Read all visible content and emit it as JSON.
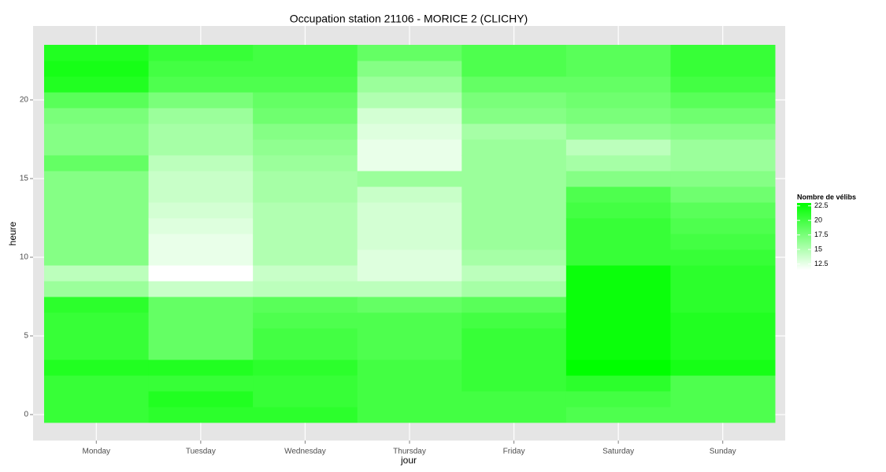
{
  "chart_data": {
    "type": "heatmap",
    "title": "Occupation station 21106 - MORICE 2 (CLICHY)",
    "x_label": "jour",
    "y_label": "heure",
    "categories": [
      "Monday",
      "Tuesday",
      "Wednesday",
      "Thursday",
      "Friday",
      "Saturday",
      "Sunday"
    ],
    "y": [
      0,
      1,
      2,
      3,
      4,
      5,
      6,
      7,
      8,
      9,
      10,
      11,
      12,
      13,
      14,
      15,
      16,
      17,
      18,
      19,
      20,
      21,
      22,
      23
    ],
    "values": [
      [
        20.5,
        20.5,
        20.5,
        21.5,
        20.5,
        20.5,
        20.5,
        21,
        16,
        14.5,
        17,
        17,
        17,
        17,
        17,
        17,
        18.5,
        17,
        17,
        17.5,
        19,
        21.5,
        22,
        21.5
      ],
      [
        21,
        21.5,
        20.5,
        21.5,
        18.5,
        18.5,
        18.5,
        18.5,
        14,
        11.5,
        12.5,
        12.5,
        13,
        13.5,
        14,
        14,
        14.5,
        15.5,
        15.5,
        16,
        17.5,
        19.5,
        20,
        20.5
      ],
      [
        21,
        20.5,
        20.5,
        21,
        20,
        20,
        19.5,
        19,
        14.5,
        14,
        15,
        15,
        15,
        15,
        15.5,
        15.5,
        16,
        16.5,
        17,
        18,
        18.5,
        19.5,
        20,
        20
      ],
      [
        20,
        20,
        20,
        20,
        19.5,
        19.5,
        19.5,
        18.5,
        14.5,
        13,
        13,
        13.5,
        13.5,
        13.5,
        14,
        16,
        12.5,
        12.5,
        13,
        13.5,
        15,
        16,
        17,
        18.5
      ],
      [
        20,
        20,
        20.5,
        20.5,
        20.5,
        20.5,
        20,
        19,
        15.5,
        14.5,
        15.5,
        16,
        16,
        16,
        16,
        16,
        16,
        16,
        15.5,
        17,
        17.5,
        18.5,
        19.5,
        19.5
      ],
      [
        19.5,
        20,
        21,
        23,
        22.5,
        22.5,
        22.5,
        22.5,
        22.5,
        22.5,
        20.5,
        20.5,
        20.5,
        20,
        19.5,
        17,
        15.5,
        14.5,
        16.5,
        17.5,
        18,
        18.5,
        19,
        19
      ],
      [
        19.5,
        19.5,
        19.5,
        22,
        21.5,
        21.5,
        21.5,
        21,
        21,
        21,
        20.5,
        20,
        19.5,
        19,
        18,
        17,
        16,
        16,
        17,
        18,
        19,
        20,
        20.5,
        20.5
      ]
    ],
    "ylim": [
      -1.65,
      24.7
    ],
    "yticks": [
      0,
      5,
      10,
      15,
      20
    ],
    "grid": true,
    "color_low": "#ffffff",
    "color_high": "#00ff00",
    "color_range": [
      11.5,
      23
    ],
    "legend": {
      "title": "Nombre de vélibs",
      "ticks": [
        12.5,
        15,
        17.5,
        20,
        22.5
      ],
      "position": "right"
    }
  }
}
